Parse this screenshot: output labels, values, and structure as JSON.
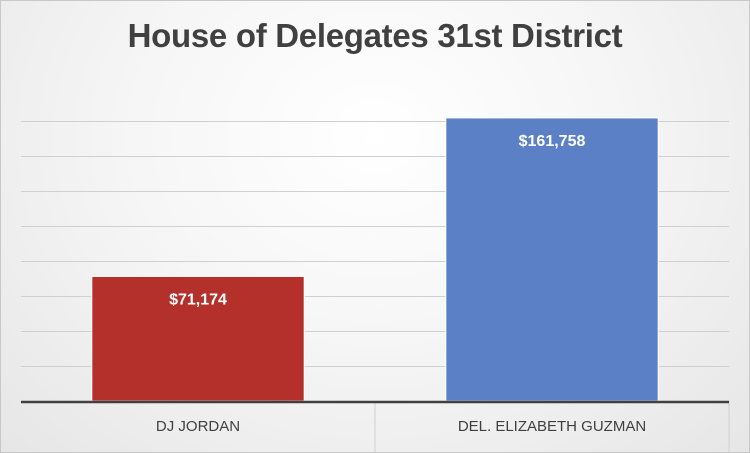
{
  "chart_data": {
    "type": "bar",
    "title": "House of Delegates 31st District",
    "categories": [
      "DJ JORDAN",
      "DEL. ELIZABETH GUZMAN"
    ],
    "values": [
      71174,
      161758
    ],
    "value_labels": [
      "$71,174",
      "$161,758"
    ],
    "ylim": [
      0,
      160000
    ],
    "grid": true,
    "legend": "none",
    "colors": [
      "#b4302a",
      "#5b80c6"
    ]
  }
}
